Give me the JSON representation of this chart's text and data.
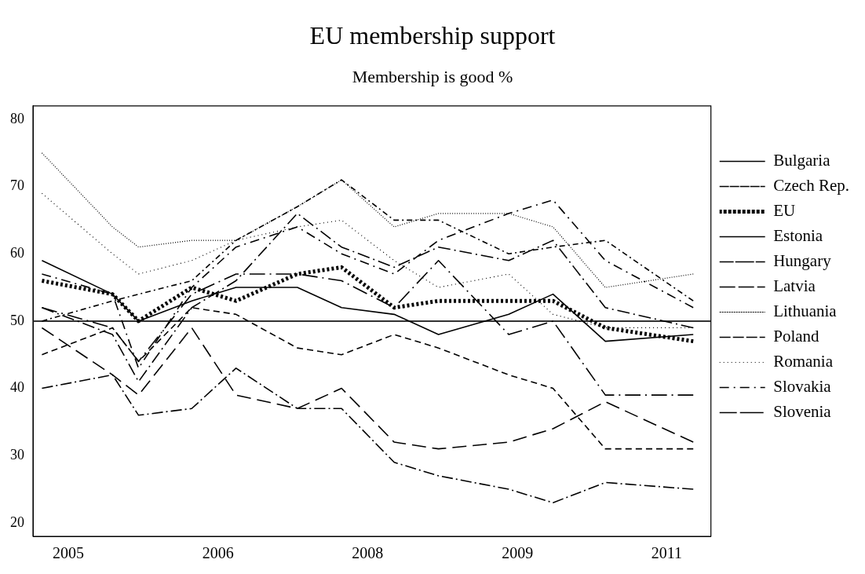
{
  "chart_data": {
    "type": "line",
    "title": "EU membership support",
    "subtitle": "Membership is good %",
    "x": [
      "2005-04",
      "2005-12",
      "2006-03",
      "2006-09",
      "2007-02",
      "2007-09",
      "2008-02",
      "2008-08",
      "2009-01",
      "2009-09",
      "2010-02",
      "2010-08",
      "2011-06"
    ],
    "xlim": [
      "2005-03",
      "2011-08"
    ],
    "xticks": [
      {
        "value": "2005-07",
        "label": "2005"
      },
      {
        "value": "2006-12",
        "label": "2006"
      },
      {
        "value": "2008-05",
        "label": "2008"
      },
      {
        "value": "2009-10",
        "label": "2009"
      },
      {
        "value": "2011-03",
        "label": "2011"
      }
    ],
    "ylim": [
      18,
      82
    ],
    "yticks": [
      20,
      30,
      40,
      50,
      60,
      70,
      80
    ],
    "grid": false,
    "legend": "right",
    "marker": "none",
    "ref_lines": [
      {
        "axis": "y",
        "value": 50,
        "color": "#333333"
      }
    ],
    "series": [
      {
        "name": "Bulgaria",
        "color": "#000000",
        "line_style": "solid",
        "values": [
          59,
          54,
          50,
          53,
          55,
          55,
          52,
          51,
          48,
          51,
          54,
          47,
          48
        ]
      },
      {
        "name": "Czech Rep.",
        "color": "#000000",
        "line_style": "dashed",
        "values": [
          45,
          49,
          44,
          52,
          51,
          46,
          45,
          48,
          46,
          42,
          40,
          31,
          31
        ]
      },
      {
        "name": "EU",
        "color": "#000000",
        "line_style": "dotted",
        "values": [
          56,
          54,
          50,
          55,
          53,
          57,
          58,
          52,
          53,
          53,
          53,
          49,
          47
        ]
      },
      {
        "name": "Estonia",
        "color": "#000000",
        "line_style": "dashed",
        "values": [
          52,
          48,
          41,
          52,
          56,
          66,
          61,
          58,
          61,
          59,
          62,
          52,
          49
        ]
      },
      {
        "name": "Hungary",
        "color": "#000000",
        "line_style": "dashed",
        "values": [
          49,
          42,
          39,
          49,
          39,
          37,
          40,
          32,
          31,
          32,
          34,
          38,
          32
        ]
      },
      {
        "name": "Latvia",
        "color": "#000000",
        "line_style": "dashed",
        "values": [
          40,
          42,
          36,
          37,
          43,
          37,
          37,
          29,
          27,
          25,
          23,
          26,
          25
        ]
      },
      {
        "name": "Lithuania",
        "color": "#000000",
        "line_style": "dotted",
        "values": [
          75,
          64,
          61,
          62,
          62,
          67,
          71,
          64,
          66,
          66,
          64,
          55,
          57
        ]
      },
      {
        "name": "Poland",
        "color": "#000000",
        "line_style": "dashed",
        "values": [
          50,
          53,
          54,
          56,
          62,
          67,
          71,
          65,
          65,
          60,
          61,
          62,
          53
        ]
      },
      {
        "name": "Romania",
        "color": "#000000",
        "line_style": "dotted",
        "values": [
          69,
          60,
          57,
          59,
          62,
          64,
          65,
          59,
          55,
          57,
          51,
          49,
          49
        ]
      },
      {
        "name": "Slovakia",
        "color": "#000000",
        "line_style": "dashed",
        "values": [
          57,
          54,
          43,
          55,
          61,
          64,
          60,
          57,
          62,
          66,
          68,
          59,
          52
        ]
      },
      {
        "name": "Slovenia",
        "color": "#000000",
        "line_style": "dashed",
        "values": [
          52,
          49,
          44,
          54,
          57,
          57,
          56,
          52,
          59,
          48,
          50,
          39,
          39
        ]
      }
    ]
  }
}
